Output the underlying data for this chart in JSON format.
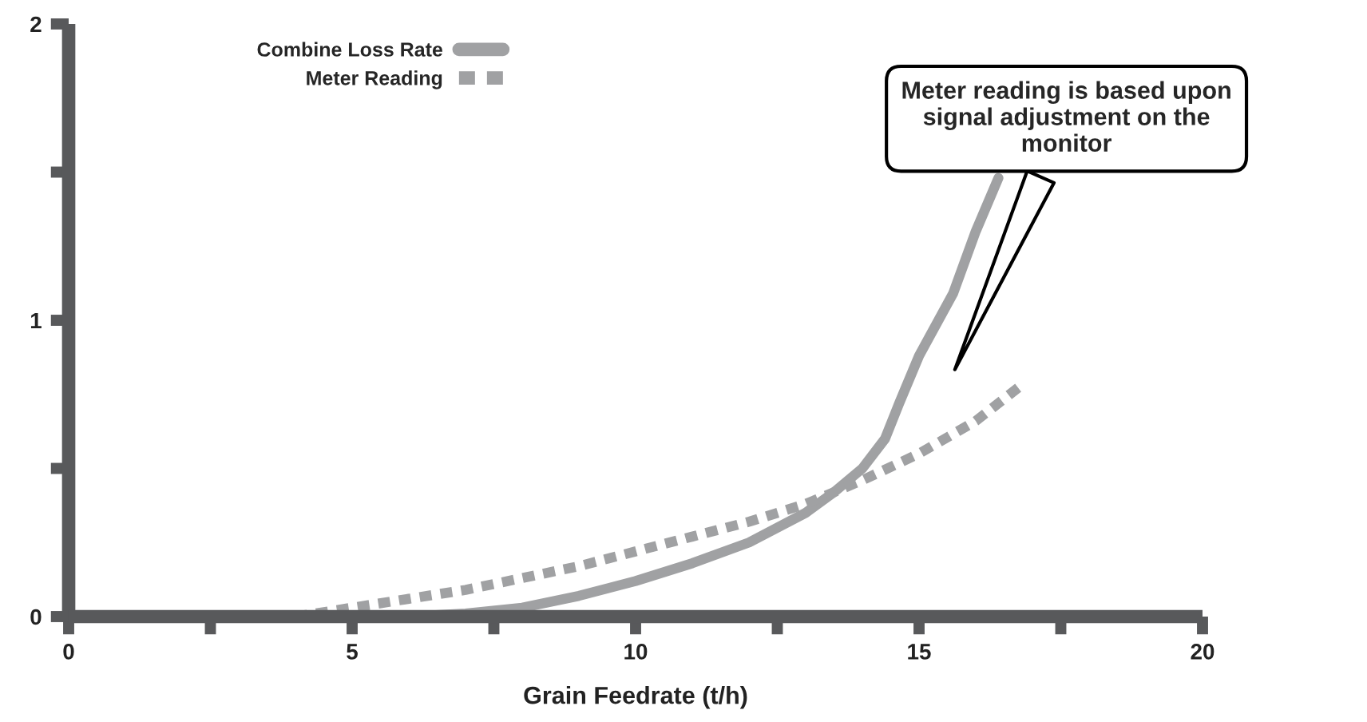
{
  "chart_data": {
    "type": "line",
    "xlabel": "Grain Feedrate (t/h)",
    "xlim": [
      0,
      20
    ],
    "ylim": [
      0,
      2
    ],
    "xticks": [
      0,
      {
        "value": 2.5,
        "label": null
      },
      5,
      {
        "value": 7.5,
        "label": null
      },
      10,
      {
        "value": 12.5,
        "label": null
      },
      15,
      {
        "value": 17.5,
        "label": null
      },
      20
    ],
    "yticks": [
      0,
      {
        "value": 0.5,
        "label": null
      },
      1,
      {
        "value": 1.5,
        "label": null
      },
      2
    ],
    "grid": false,
    "legend": "top left",
    "marker": "none",
    "annotations": [
      "Meter reading is based upon signal adjustment on the monitor"
    ],
    "series": [
      {
        "name": "Combine Loss Rate",
        "color": "#a0a1a3",
        "line_style": "solid",
        "x": [
          6,
          7,
          8,
          9,
          10,
          11,
          12,
          13,
          13.5,
          14,
          14.4,
          14.65,
          15,
          15.6,
          16,
          16.4
        ],
        "values": [
          0,
          0.01,
          0.03,
          0.07,
          0.12,
          0.18,
          0.25,
          0.35,
          0.42,
          0.5,
          0.6,
          0.72,
          0.88,
          1.09,
          1.3,
          1.48
        ]
      },
      {
        "name": "Meter Reading",
        "color": "#a0a1a3",
        "line_style": "dashed",
        "x": [
          4,
          5,
          6,
          7,
          8,
          9,
          10,
          11,
          12,
          13,
          14,
          15,
          16,
          16.8
        ],
        "values": [
          0,
          0.03,
          0.06,
          0.09,
          0.13,
          0.17,
          0.22,
          0.27,
          0.32,
          0.38,
          0.46,
          0.55,
          0.66,
          0.78
        ]
      }
    ]
  }
}
